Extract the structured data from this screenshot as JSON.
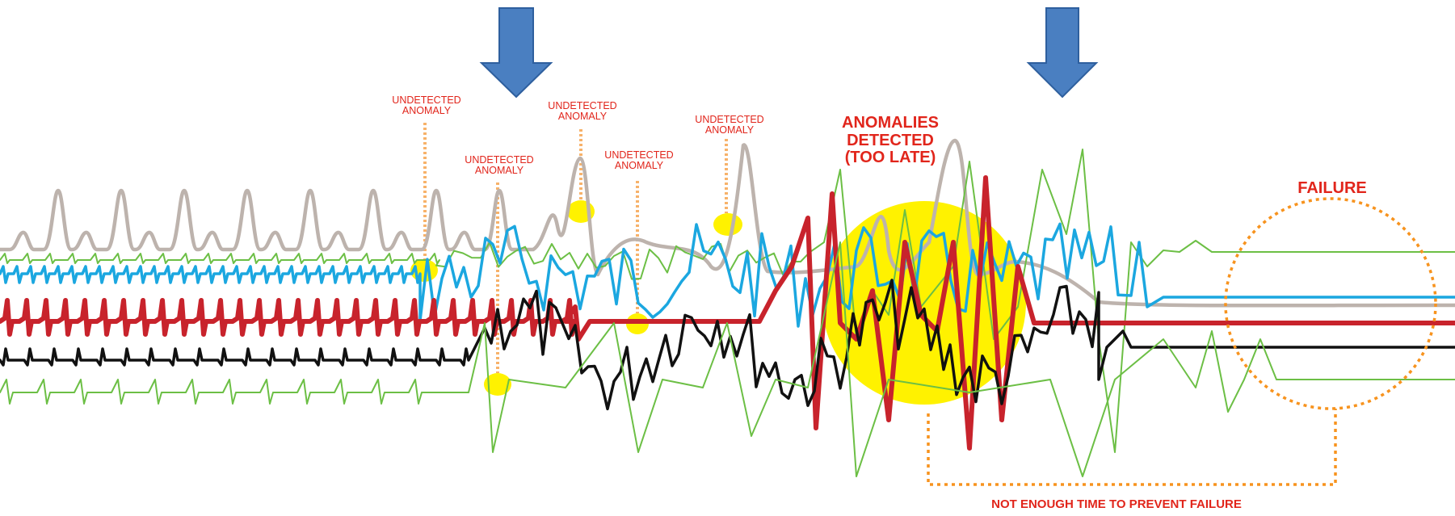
{
  "labels": {
    "undetected_1": "UNDETECTED\nANOMALY",
    "undetected_2": "UNDETECTED\nANOMALY",
    "undetected_3": "UNDETECTED\nANOMALY",
    "undetected_4": "UNDETECTED\nANOMALY",
    "undetected_5": "UNDETECTED\nANOMALY",
    "anomalies_detected": "ANOMALIES\nDETECTED\n(TOO LATE)",
    "failure": "FAILURE",
    "not_enough_time": "NOT ENOUGH TIME TO PREVENT FAILURE"
  },
  "colors": {
    "label_red": "#e1251b",
    "arrow_blue": "#4a7fc1",
    "highlight_yellow": "#fff200",
    "callout_orange": "#f7931e",
    "signal_grey": "#bdb3ad",
    "signal_green": "#6cbf45",
    "signal_blue": "#1ba7e0",
    "signal_red": "#c8232c",
    "signal_black": "#111111"
  },
  "icons": [
    "down-arrow-icon",
    "down-arrow-icon"
  ]
}
